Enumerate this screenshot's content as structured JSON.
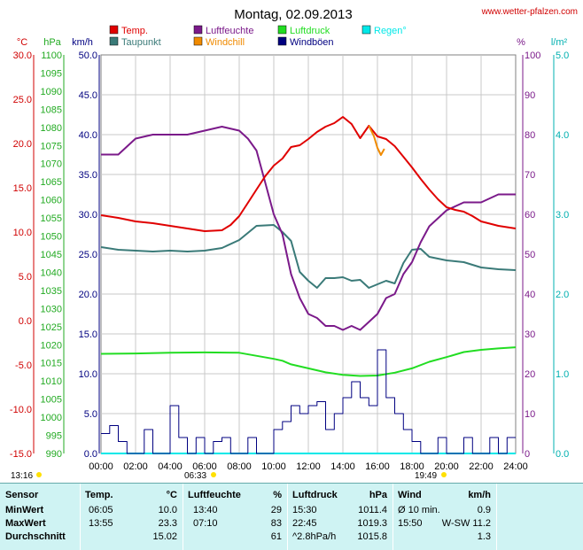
{
  "header": {
    "title": "Montag, 02.09.2013",
    "source": "www.wetter-pfalzen.com"
  },
  "legend": [
    {
      "label": "Temp.",
      "color": "#e00000"
    },
    {
      "label": "Taupunkt",
      "color": "#3a7a78"
    },
    {
      "label": "Luftfeuchte",
      "color": "#7b1a8a"
    },
    {
      "label": "Windchill",
      "color": "#f08a00"
    },
    {
      "label": "Luftdruck",
      "color": "#22dd22"
    },
    {
      "label": "Windböen",
      "color": "#000080"
    },
    {
      "label": "Regen°",
      "color": "#00e8e8"
    }
  ],
  "axis_units": {
    "temp": "°C",
    "pressure": "hPa",
    "wind": "km/h",
    "humidity": "%",
    "rain": "l/m²"
  },
  "sun": {
    "left": "13:16",
    "sunrise": "06:33",
    "sunset": "19:49"
  },
  "chart_data": {
    "type": "line",
    "x_ticks": [
      "00:00",
      "02:00",
      "04:00",
      "06:00",
      "08:00",
      "10:00",
      "12:00",
      "14:00",
      "16:00",
      "18:00",
      "20:00",
      "22:00",
      "24:00"
    ],
    "axes": {
      "temp": {
        "unit": "°C",
        "ylim": [
          -15,
          30
        ],
        "ticks": [
          "30.0",
          "25.0",
          "20.0",
          "15.0",
          "10.0",
          "5.0",
          "0.0",
          "-5.0",
          "-10.0",
          "-15.0"
        ]
      },
      "pressure": {
        "unit": "hPa",
        "ylim": [
          990,
          1100
        ],
        "ticks": [
          "1100",
          "1095",
          "1090",
          "1085",
          "1080",
          "1075",
          "1070",
          "1065",
          "1060",
          "1055",
          "1050",
          "1045",
          "1040",
          "1035",
          "1030",
          "1025",
          "1020",
          "1015",
          "1010",
          "1005",
          "1000",
          "995",
          "990"
        ]
      },
      "wind": {
        "unit": "km/h",
        "ylim": [
          0,
          50
        ],
        "ticks": [
          "50.0",
          "45.0",
          "40.0",
          "35.0",
          "30.0",
          "25.0",
          "20.0",
          "15.0",
          "10.0",
          "5.0",
          "0.0"
        ]
      },
      "humidity": {
        "unit": "%",
        "ylim": [
          0,
          100
        ],
        "ticks": [
          "100",
          "90",
          "80",
          "70",
          "60",
          "50",
          "40",
          "30",
          "20",
          "10",
          "0"
        ]
      },
      "rain": {
        "unit": "l/m²",
        "ylim": [
          0,
          5
        ],
        "ticks": [
          "5.0",
          "4.0",
          "3.0",
          "2.0",
          "1.0",
          "0.0"
        ]
      }
    },
    "series": [
      {
        "name": "Temp.",
        "axis": "temp",
        "color": "#e00000",
        "x": [
          0,
          1,
          2,
          3,
          4,
          5,
          6,
          7,
          7.5,
          8,
          8.5,
          9,
          9.5,
          10,
          10.5,
          11,
          11.5,
          12,
          12.5,
          13,
          13.5,
          14,
          14.5,
          15,
          15.5,
          16,
          16.5,
          17,
          17.5,
          18,
          18.5,
          19,
          19.5,
          20,
          20.5,
          21,
          21.5,
          22,
          23,
          24
        ],
        "y": [
          11.9,
          11.6,
          11.2,
          11.0,
          10.7,
          10.4,
          10.1,
          10.2,
          10.8,
          11.8,
          13.3,
          14.8,
          16.3,
          17.5,
          18.3,
          19.6,
          19.8,
          20.5,
          21.3,
          21.9,
          22.3,
          23.0,
          22.2,
          20.6,
          22.0,
          20.8,
          20.5,
          19.7,
          18.5,
          17.3,
          16.0,
          14.8,
          13.7,
          12.8,
          12.5,
          12.3,
          11.8,
          11.2,
          10.7,
          10.4
        ]
      },
      {
        "name": "Taupunkt",
        "axis": "temp",
        "color": "#3a7a78",
        "x": [
          0,
          1,
          2,
          3,
          4,
          5,
          6,
          7,
          8,
          9,
          10,
          10.5,
          11,
          11.5,
          12,
          12.5,
          13,
          13.5,
          14,
          14.5,
          15,
          15.5,
          16,
          16.5,
          17,
          17.5,
          18,
          18.5,
          19,
          20,
          21,
          22,
          23,
          24
        ],
        "y": [
          8.3,
          8.0,
          7.9,
          7.8,
          7.9,
          7.8,
          7.9,
          8.2,
          9.1,
          10.7,
          10.8,
          10.0,
          9.0,
          5.5,
          4.5,
          3.7,
          4.8,
          4.8,
          4.9,
          4.5,
          4.6,
          3.7,
          4.1,
          4.5,
          4.2,
          6.5,
          8.0,
          8.1,
          7.2,
          6.8,
          6.6,
          6.0,
          5.8,
          5.7
        ]
      },
      {
        "name": "Luftfeuchte",
        "axis": "humidity",
        "color": "#7b1a8a",
        "x": [
          0,
          1,
          2,
          3,
          4,
          5,
          6,
          7,
          8,
          8.5,
          9,
          9.5,
          10,
          10.5,
          11,
          11.5,
          12,
          12.5,
          13,
          13.5,
          14,
          14.5,
          15,
          15.5,
          16,
          16.5,
          17,
          17.5,
          18,
          18.5,
          19,
          20,
          21,
          22,
          23,
          24
        ],
        "y": [
          75,
          75,
          79,
          80,
          80,
          80,
          81,
          82,
          81,
          79,
          76,
          68,
          60,
          55,
          45,
          39,
          35,
          34,
          32,
          32,
          31,
          32,
          31,
          33,
          35,
          39,
          40,
          45,
          48,
          53,
          57,
          61,
          63,
          63,
          65,
          65
        ]
      },
      {
        "name": "Windchill",
        "axis": "temp",
        "color": "#f08a00",
        "x": [
          15.5,
          15.8,
          16.0,
          16.2,
          16.4
        ],
        "y": [
          22.0,
          20.8,
          19.5,
          18.7,
          19.4
        ]
      },
      {
        "name": "Luftdruck",
        "axis": "pressure",
        "color": "#22dd22",
        "x": [
          0,
          2,
          4,
          6,
          8,
          10,
          10.5,
          11,
          12,
          13,
          14,
          15,
          16,
          17,
          18,
          19,
          20,
          21,
          22,
          23,
          24
        ],
        "y": [
          1017.5,
          1017.6,
          1017.8,
          1017.9,
          1017.8,
          1016.1,
          1015.6,
          1014.6,
          1013.5,
          1012.4,
          1011.7,
          1011.4,
          1011.5,
          1012.3,
          1013.5,
          1015.3,
          1016.6,
          1018.0,
          1018.6,
          1019.0,
          1019.3
        ]
      },
      {
        "name": "Windböen",
        "axis": "wind",
        "color": "#000080",
        "x": [
          0,
          0.5,
          1,
          1.5,
          2,
          2.5,
          3,
          3.5,
          4,
          4.5,
          5,
          5.5,
          6,
          6.5,
          7,
          7.5,
          8,
          8.5,
          9,
          9.5,
          10,
          10.5,
          11,
          11.5,
          12,
          12.5,
          13,
          13.5,
          14,
          14.5,
          15,
          15.5,
          16,
          16.5,
          17,
          17.5,
          18,
          18.5,
          19,
          19.5,
          20,
          20.5,
          21,
          21.5,
          22,
          22.5,
          23,
          23.5,
          24
        ],
        "y": [
          2.5,
          3.5,
          1.5,
          0,
          0,
          3,
          0,
          0,
          6,
          2,
          0,
          2,
          0,
          1.5,
          2,
          0,
          0,
          2,
          0,
          0,
          3,
          4,
          6,
          5,
          6,
          6.5,
          3,
          5,
          7,
          9,
          7,
          6,
          13,
          7,
          5,
          3,
          1.5,
          0,
          0,
          2,
          0,
          0,
          2,
          0,
          0,
          2,
          0,
          2,
          2
        ]
      },
      {
        "name": "Regen°",
        "axis": "rain",
        "color": "#00e8e8",
        "x": [
          0,
          24
        ],
        "y": [
          0,
          0
        ]
      }
    ]
  },
  "stats": {
    "headers": {
      "sensor": "Sensor",
      "temp": "Temp.",
      "temp_unit": "°C",
      "hum": "Luftfeuchte",
      "hum_unit": "%",
      "press": "Luftdruck",
      "press_unit": "hPa",
      "wind": "Wind",
      "wind_unit": "km/h"
    },
    "rows": [
      {
        "label": "MinWert",
        "t_time": "06:05",
        "t_val": "10.0",
        "h_time": "13:40",
        "h_val": "29",
        "p_time": "15:30",
        "p_val": "1011.4",
        "w_time": "Ø 10 min.",
        "w_val": "0.9"
      },
      {
        "label": "MaxWert",
        "t_time": "13:55",
        "t_val": "23.3",
        "h_time": "07:10",
        "h_val": "83",
        "p_time": "22:45",
        "p_val": "1019.3",
        "w_time": "15:50",
        "w_val": "W-SW 11.2"
      },
      {
        "label": "Durchschnitt",
        "t_time": "",
        "t_val": "15.02",
        "h_time": "",
        "h_val": "61",
        "p_time": "^2.8hPa/h",
        "p_val": "1015.8",
        "w_time": "",
        "w_val": "1.3"
      }
    ]
  }
}
